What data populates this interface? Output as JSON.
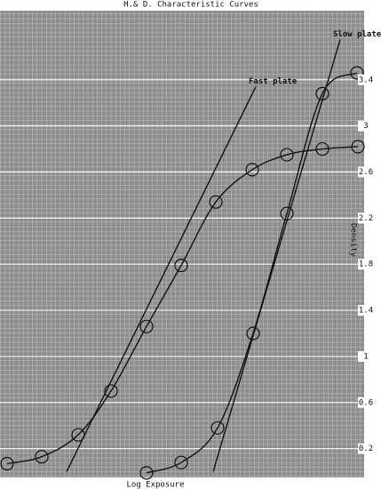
{
  "chart_data": {
    "type": "line",
    "title": "H.& D. Characteristic Curves",
    "x_label": "Log Exposure",
    "y_label": "Density",
    "xlim": [
      0,
      4.1
    ],
    "ylim": [
      -0.15,
      4.0
    ],
    "yticks": [
      0.2,
      0.6,
      1.0,
      1.4,
      1.8,
      2.2,
      2.6,
      3.0,
      3.4
    ],
    "grid": true,
    "series": [
      {
        "name": "Fast plate",
        "color": "#111111",
        "x": [
          0.08,
          0.47,
          0.88,
          1.25,
          1.65,
          2.04,
          2.43,
          2.84,
          3.23,
          3.63,
          4.03
        ],
        "values": [
          0.07,
          0.13,
          0.32,
          0.7,
          1.26,
          1.79,
          2.34,
          2.62,
          2.75,
          2.8,
          2.82
        ],
        "line_x": [
          0.75,
          2.88
        ],
        "line_y": [
          0.0,
          3.34
        ]
      },
      {
        "name": "Slow plate",
        "color": "#111111",
        "x": [
          1.65,
          2.04,
          2.45,
          2.85,
          3.23,
          3.63,
          4.02
        ],
        "values": [
          -0.01,
          0.08,
          0.38,
          1.2,
          2.24,
          3.28,
          3.46
        ],
        "line_x": [
          2.4,
          3.83
        ],
        "line_y": [
          0.0,
          3.75
        ]
      }
    ]
  }
}
